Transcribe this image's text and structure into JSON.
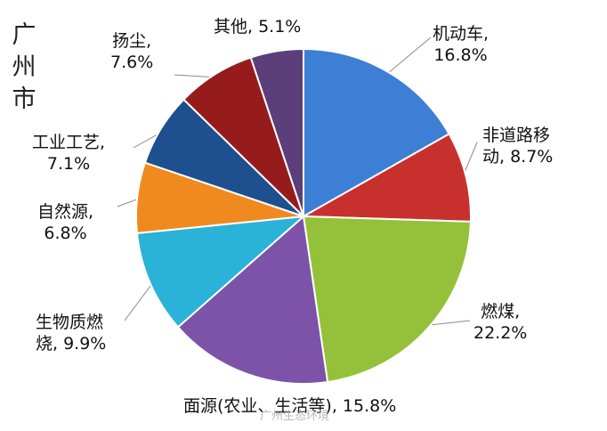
{
  "chart_data": {
    "type": "pie",
    "title": "广州市",
    "slices": [
      {
        "label": "机动车,",
        "value": 16.8,
        "value_text": "16.8%",
        "color": "#3d7fd4"
      },
      {
        "label": "非道路移",
        "label2": "动, ",
        "value": 8.7,
        "value_text": "8.7%",
        "color": "#c8302e"
      },
      {
        "label": "燃煤,",
        "value": 22.2,
        "value_text": "22.2%",
        "color": "#95c13a"
      },
      {
        "label": "面源(农业、生活等), ",
        "value": 15.8,
        "value_text": "15.8%",
        "color": "#7c53a8"
      },
      {
        "label": "生物质燃",
        "label2": "烧, ",
        "value": 9.9,
        "value_text": "9.9%",
        "color": "#2ab2d8"
      },
      {
        "label": "自然源,",
        "value": 6.8,
        "value_text": "6.8%",
        "color": "#f08a1e"
      },
      {
        "label": "工业工艺,",
        "value": 7.1,
        "value_text": "7.1%",
        "color": "#1e4f8e"
      },
      {
        "label": "扬尘,",
        "value": 7.6,
        "value_text": "7.6%",
        "color": "#961c1c"
      },
      {
        "label": "其他, ",
        "value": 5.1,
        "value_text": "5.1%",
        "color": "#5b3e7a"
      }
    ]
  },
  "watermark": "广州生态环境"
}
